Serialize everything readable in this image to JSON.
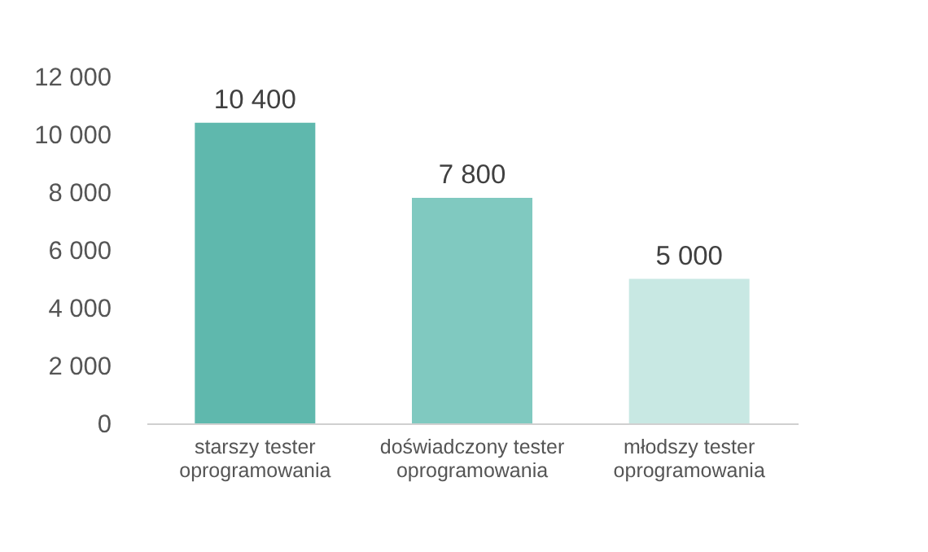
{
  "chart_data": {
    "type": "bar",
    "categories": [
      "starszy tester oprogramowania",
      "doświadczony tester oprogramowania",
      "młodszy tester oprogramowania"
    ],
    "values": [
      10400,
      7800,
      5000
    ],
    "colors": [
      "#5fb8ad",
      "#80c9c0",
      "#c8e8e3"
    ],
    "value_labels": [
      "10 400",
      "7 800",
      "5 000"
    ],
    "ylim": [
      0,
      12000
    ],
    "yticks": [
      {
        "value": 0,
        "label": "0"
      },
      {
        "value": 2000,
        "label": "2 000"
      },
      {
        "value": 4000,
        "label": "4 000"
      },
      {
        "value": 6000,
        "label": "6 000"
      },
      {
        "value": 8000,
        "label": "8 000"
      },
      {
        "value": 10000,
        "label": "10 000"
      },
      {
        "value": 12000,
        "label": "12 000"
      }
    ],
    "grid": false
  }
}
